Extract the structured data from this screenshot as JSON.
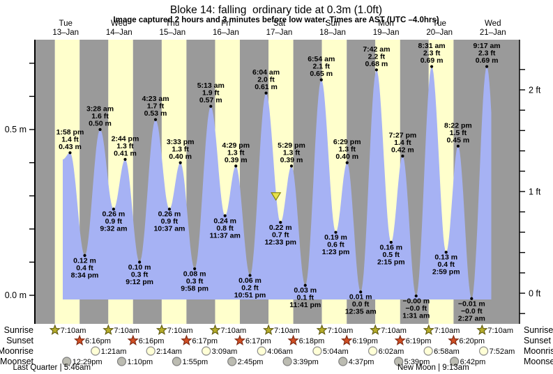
{
  "title": "Bloke 14: falling  ordinary tide at 0.3m (1.0ft)",
  "subtitle": "Image captured 2 hours and 3 minutes before low water. Times are AST (UTC –4.0hrs)",
  "days": [
    {
      "weekday": "Tue",
      "date": "13–Jan"
    },
    {
      "weekday": "Wed",
      "date": "14–Jan"
    },
    {
      "weekday": "Thu",
      "date": "15–Jan"
    },
    {
      "weekday": "Fri",
      "date": "16–Jan"
    },
    {
      "weekday": "Sat",
      "date": "17–Jan"
    },
    {
      "weekday": "Sun",
      "date": "18–Jan"
    },
    {
      "weekday": "Mon",
      "date": "19–Jan"
    },
    {
      "weekday": "Tue",
      "date": "20–Jan"
    },
    {
      "weekday": "Wed",
      "date": "21–Jan"
    }
  ],
  "chart_data": {
    "type": "area",
    "title": "Bloke 14: falling  ordinary tide at 0.3m (1.0ft)",
    "y_axis_left": {
      "unit": "m",
      "tick_step": 0.1,
      "tick_min": 0.0,
      "tick_max": 0.7,
      "labeled_ticks": [
        {
          "m": 0.0,
          "label": "0.0 m"
        },
        {
          "m": 0.5,
          "label": "0.5 m"
        }
      ]
    },
    "y_axis_right": {
      "unit": "ft",
      "tick_step": 0.2,
      "tick_min": -0.2,
      "tick_max": 2.2,
      "labeled_ticks": [
        {
          "ft": 0,
          "label": "0 ft"
        },
        {
          "ft": 1,
          "label": "1 ft"
        },
        {
          "ft": 2,
          "label": "2 ft"
        }
      ]
    },
    "tide_events": [
      {
        "day": 0,
        "time": "1:58 pm",
        "kind": "high",
        "m": 0.43,
        "labels": [
          "1:58 pm",
          "1.4 ft",
          "0.43 m"
        ]
      },
      {
        "day": 0,
        "time": "8:34 pm",
        "kind": "low",
        "m": 0.12,
        "labels": [
          "0.12 m",
          "0.4 ft",
          "8:34 pm"
        ]
      },
      {
        "day": 1,
        "time": "3:28 am",
        "kind": "high",
        "m": 0.5,
        "labels": [
          "3:28 am",
          "1.6 ft",
          "0.50 m"
        ]
      },
      {
        "day": 1,
        "time": "9:32 am",
        "kind": "low",
        "m": 0.26,
        "labels": [
          "0.26 m",
          "0.9 ft",
          "9:32 am"
        ]
      },
      {
        "day": 1,
        "time": "2:44 pm",
        "kind": "high",
        "m": 0.41,
        "labels": [
          "2:44 pm",
          "1.3 ft",
          "0.41 m"
        ]
      },
      {
        "day": 1,
        "time": "9:12 pm",
        "kind": "low",
        "m": 0.1,
        "labels": [
          "0.10 m",
          "0.3 ft",
          "9:12 pm"
        ]
      },
      {
        "day": 2,
        "time": "4:23 am",
        "kind": "high",
        "m": 0.53,
        "labels": [
          "4:23 am",
          "1.7 ft",
          "0.53 m"
        ]
      },
      {
        "day": 2,
        "time": "10:37 am",
        "kind": "low",
        "m": 0.26,
        "labels": [
          "0.26 m",
          "0.9 ft",
          "10:37 am"
        ]
      },
      {
        "day": 2,
        "time": "3:33 pm",
        "kind": "high",
        "m": 0.4,
        "labels": [
          "3:33 pm",
          "1.3 ft",
          "0.40 m"
        ]
      },
      {
        "day": 2,
        "time": "9:58 pm",
        "kind": "low",
        "m": 0.08,
        "labels": [
          "0.08 m",
          "0.3 ft",
          "9:58 pm"
        ]
      },
      {
        "day": 3,
        "time": "5:13 am",
        "kind": "high",
        "m": 0.57,
        "labels": [
          "5:13 am",
          "1.9 ft",
          "0.57 m"
        ]
      },
      {
        "day": 3,
        "time": "11:37 am",
        "kind": "low",
        "m": 0.24,
        "labels": [
          "0.24 m",
          "0.8 ft",
          "11:37 am"
        ]
      },
      {
        "day": 3,
        "time": "4:29 pm",
        "kind": "high",
        "m": 0.39,
        "labels": [
          "4:29 pm",
          "1.3 ft",
          "0.39 m"
        ]
      },
      {
        "day": 3,
        "time": "10:51 pm",
        "kind": "low",
        "m": 0.06,
        "labels": [
          "0.06 m",
          "0.2 ft",
          "10:51 pm"
        ]
      },
      {
        "day": 4,
        "time": "6:04 am",
        "kind": "high",
        "m": 0.61,
        "labels": [
          "6:04 am",
          "2.0 ft",
          "0.61 m"
        ]
      },
      {
        "day": 4,
        "time": "12:33 pm",
        "kind": "low",
        "m": 0.22,
        "labels": [
          "0.22 m",
          "0.7 ft",
          "12:33 pm"
        ]
      },
      {
        "day": 4,
        "time": "5:29 pm",
        "kind": "high",
        "m": 0.39,
        "labels": [
          "5:29 pm",
          "1.3 ft",
          "0.39 m"
        ]
      },
      {
        "day": 4,
        "time": "11:41 pm",
        "kind": "low",
        "m": 0.03,
        "labels": [
          "0.03 m",
          "0.1 ft",
          "11:41 pm"
        ]
      },
      {
        "day": 5,
        "time": "6:54 am",
        "kind": "high",
        "m": 0.65,
        "labels": [
          "6:54 am",
          "2.1 ft",
          "0.65 m"
        ]
      },
      {
        "day": 5,
        "time": "1:23 pm",
        "kind": "low",
        "m": 0.19,
        "labels": [
          "0.19 m",
          "0.6 ft",
          "1:23 pm"
        ]
      },
      {
        "day": 5,
        "time": "6:29 pm",
        "kind": "high",
        "m": 0.4,
        "labels": [
          "6:29 pm",
          "1.3 ft",
          "0.40 m"
        ]
      },
      {
        "day": 6,
        "time": "12:35 am",
        "kind": "low",
        "m": 0.01,
        "labels": [
          "0.01 m",
          "0.0 ft",
          "12:35 am"
        ]
      },
      {
        "day": 6,
        "time": "7:42 am",
        "kind": "high",
        "m": 0.68,
        "labels": [
          "7:42 am",
          "2.2 ft",
          "0.68 m"
        ]
      },
      {
        "day": 6,
        "time": "2:15 pm",
        "kind": "low",
        "m": 0.16,
        "labels": [
          "0.16 m",
          "0.5 ft",
          "2:15 pm"
        ]
      },
      {
        "day": 6,
        "time": "7:27 pm",
        "kind": "high",
        "m": 0.42,
        "labels": [
          "7:27 pm",
          "1.4 ft",
          "0.42 m"
        ]
      },
      {
        "day": 7,
        "time": "1:31 am",
        "kind": "low",
        "m": -0.002,
        "labels": [
          "−0.00 m",
          "−0.0 ft",
          "1:31 am"
        ]
      },
      {
        "day": 7,
        "time": "8:31 am",
        "kind": "high",
        "m": 0.69,
        "labels": [
          "8:31 am",
          "2.3 ft",
          "0.69 m"
        ]
      },
      {
        "day": 7,
        "time": "2:59 pm",
        "kind": "low",
        "m": 0.13,
        "labels": [
          "0.13 m",
          "0.4 ft",
          "2:59 pm"
        ]
      },
      {
        "day": 7,
        "time": "8:22 pm",
        "kind": "high",
        "m": 0.45,
        "labels": [
          "8:22 pm",
          "1.5 ft",
          "0.45 m"
        ]
      },
      {
        "day": 8,
        "time": "2:27 am",
        "kind": "low",
        "m": -0.01,
        "labels": [
          "−0.01 m",
          "−0.0 ft",
          "2:27 am"
        ]
      },
      {
        "day": 8,
        "time": "9:17 am",
        "kind": "high",
        "m": 0.69,
        "labels": [
          "9:17 am",
          "2.3 ft",
          "0.69 m"
        ]
      }
    ],
    "capture_marker": {
      "day": 4,
      "time": "10:30 am",
      "m": 0.3
    }
  },
  "sun_moon": {
    "row_labels": [
      "Sunrise",
      "Sunset",
      "Moonrise",
      "Moonset"
    ],
    "sunrise": [
      {
        "day": 0,
        "time": "7:10am"
      },
      {
        "day": 1,
        "time": "7:10am"
      },
      {
        "day": 2,
        "time": "7:10am"
      },
      {
        "day": 3,
        "time": "7:10am"
      },
      {
        "day": 4,
        "time": "7:10am"
      },
      {
        "day": 5,
        "time": "7:10am"
      },
      {
        "day": 6,
        "time": "7:10am"
      },
      {
        "day": 7,
        "time": "7:10am"
      },
      {
        "day": 8,
        "time": "7:10am"
      }
    ],
    "sunset": [
      {
        "day": 0,
        "time": "6:16pm"
      },
      {
        "day": 1,
        "time": "6:16pm"
      },
      {
        "day": 2,
        "time": "6:17pm"
      },
      {
        "day": 3,
        "time": "6:17pm"
      },
      {
        "day": 4,
        "time": "6:18pm"
      },
      {
        "day": 5,
        "time": "6:19pm"
      },
      {
        "day": 6,
        "time": "6:19pm"
      },
      {
        "day": 7,
        "time": "6:20pm"
      }
    ],
    "moonrise": [
      {
        "day": 1,
        "time": "1:21am"
      },
      {
        "day": 2,
        "time": "2:14am"
      },
      {
        "day": 3,
        "time": "3:09am"
      },
      {
        "day": 4,
        "time": "4:06am"
      },
      {
        "day": 5,
        "time": "5:04am"
      },
      {
        "day": 6,
        "time": "6:02am"
      },
      {
        "day": 7,
        "time": "6:58am"
      },
      {
        "day": 8,
        "time": "7:52am"
      }
    ],
    "moonset": [
      {
        "day": 0,
        "time": "12:29pm"
      },
      {
        "day": 1,
        "time": "1:10pm"
      },
      {
        "day": 2,
        "time": "1:55pm"
      },
      {
        "day": 3,
        "time": "2:45pm"
      },
      {
        "day": 4,
        "time": "3:39pm"
      },
      {
        "day": 5,
        "time": "4:37pm"
      },
      {
        "day": 6,
        "time": "5:39pm"
      },
      {
        "day": 7,
        "time": "6:42pm"
      }
    ],
    "phases": [
      {
        "day": 0,
        "time": "5:46am",
        "label": "Last Quarter | 5:46am"
      },
      {
        "day": 7,
        "time": "9:13am",
        "label": "New Moon | 9:13am"
      }
    ]
  },
  "colors": {
    "night_band": "#9a9a9a",
    "day_band": "#ffffcc",
    "tide_fill": "#a6b2f4",
    "day_label": "#ee2222",
    "axis": "#000000",
    "sunrise_star": "#b7ae2a",
    "sunrise_star_border": "#5f5a10",
    "sunset_star": "#d14f24",
    "sunset_star_border": "#7c2812",
    "moonrise_fill": "#ffffd6",
    "moonrise_border": "#8a8a8a",
    "moonset_fill": "#bcbcb2",
    "moonset_border": "#7d7d7d",
    "marker_fill": "#e8e24a",
    "marker_border": "#84840a"
  }
}
